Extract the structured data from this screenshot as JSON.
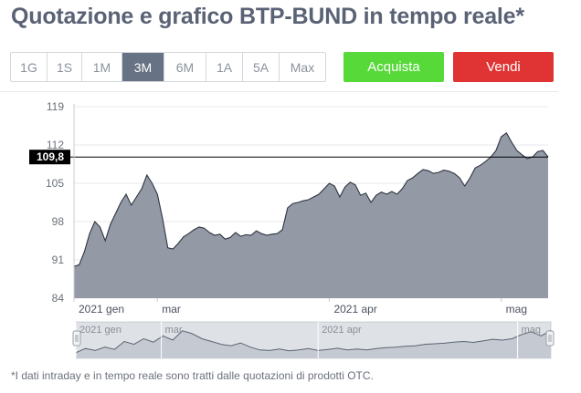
{
  "page": {
    "title": "Quotazione e grafico BTP-BUND in tempo reale*",
    "footnote": "*I dati intraday e in tempo reale sono tratti dalle quotazioni di prodotti OTC."
  },
  "toolbar": {
    "ranges": [
      {
        "label": "1G",
        "active": false
      },
      {
        "label": "1S",
        "active": false
      },
      {
        "label": "1M",
        "active": false
      },
      {
        "label": "3M",
        "active": true
      },
      {
        "label": "6M",
        "active": false
      },
      {
        "label": "1A",
        "active": false
      },
      {
        "label": "5A",
        "active": false
      },
      {
        "label": "Max",
        "active": false
      }
    ],
    "buy_label": "Acquista",
    "sell_label": "Vendi"
  },
  "colors": {
    "title": "#5a6275",
    "range_active_bg": "#677284",
    "buy": "#57d93a",
    "sell": "#e03434",
    "area_fill": "#939aa6",
    "area_stroke": "#2e3440",
    "current_line": "#000000",
    "navigator_fill": "#dde0e5",
    "navigator_stroke": "#4b5160"
  },
  "chart_data": {
    "type": "area",
    "ylim": [
      84,
      119
    ],
    "yticks": [
      84,
      91,
      98,
      105,
      112,
      119
    ],
    "x": [
      0,
      1,
      2,
      3,
      4,
      5,
      6,
      7,
      8,
      9,
      10,
      11,
      12,
      13,
      14,
      15,
      16,
      17,
      18,
      19,
      20,
      21,
      22,
      23,
      24,
      25,
      26,
      27,
      28,
      29,
      30,
      31,
      32,
      33,
      34,
      35,
      36,
      37,
      38,
      39,
      40,
      41,
      42,
      43,
      44,
      45,
      46,
      47,
      48,
      49,
      50,
      51,
      52,
      53,
      54,
      55,
      56,
      57,
      58,
      59,
      60,
      61,
      62,
      63,
      64,
      65,
      66,
      67,
      68,
      69,
      70,
      71,
      72,
      73,
      74,
      75,
      76,
      77,
      78,
      79,
      80,
      81,
      82,
      83,
      84,
      85,
      86,
      87,
      88,
      89,
      90,
      91
    ],
    "values": [
      89.8,
      90.1,
      92.5,
      95.8,
      98.0,
      97.0,
      94.5,
      97.5,
      99.5,
      101.5,
      103.0,
      101.0,
      102.5,
      104.0,
      106.5,
      105.0,
      103.0,
      98.5,
      93.2,
      93.0,
      94.0,
      95.2,
      95.8,
      96.5,
      97.0,
      96.8,
      96.0,
      95.5,
      95.7,
      94.8,
      95.1,
      96.0,
      95.3,
      95.6,
      95.5,
      96.3,
      95.8,
      95.5,
      95.7,
      95.8,
      96.5,
      100.5,
      101.3,
      101.5,
      101.8,
      102.0,
      102.5,
      103.0,
      104.0,
      105.0,
      104.5,
      102.5,
      104.3,
      105.2,
      104.7,
      102.8,
      103.2,
      101.5,
      102.8,
      103.4,
      103.0,
      103.5,
      103.0,
      104.0,
      105.5,
      106.0,
      106.8,
      107.5,
      107.3,
      106.8,
      107.0,
      107.4,
      107.2,
      106.8,
      106.0,
      104.5,
      106.0,
      107.8,
      108.3,
      109.0,
      109.8,
      111.0,
      113.5,
      114.2,
      112.5,
      111.0,
      110.2,
      109.5,
      109.8,
      110.8,
      111.0,
      109.8
    ],
    "current_value": 109.8,
    "current_label": "109,8",
    "x_tick_labels": [
      {
        "label": "2021 gen",
        "x": 0
      },
      {
        "label": "mar",
        "x": 16
      },
      {
        "label": "2021 apr",
        "x": 49
      },
      {
        "label": "mag",
        "x": 82
      }
    ],
    "navigator": {
      "values": [
        90.0,
        91.5,
        90.8,
        92.0,
        91.2,
        94.0,
        93.0,
        95.0,
        93.8,
        96.0,
        94.5,
        97.8,
        96.8,
        95.0,
        94.0,
        93.0,
        92.5,
        93.5,
        92.0,
        91.0,
        90.8,
        91.3,
        90.7,
        91.0,
        91.5,
        90.8,
        91.2,
        91.6,
        91.0,
        91.3,
        91.0,
        91.5,
        91.8,
        92.0,
        92.3,
        92.5,
        93.0,
        93.2,
        93.4,
        93.8,
        94.0,
        93.7,
        94.2,
        94.8,
        94.5,
        95.0,
        96.5,
        97.5,
        96.0,
        98.0
      ],
      "x_tick_labels": [
        {
          "label": "2021 gen",
          "x": 0
        },
        {
          "label": "mar",
          "x": 18
        },
        {
          "label": "2021 apr",
          "x": 51
        },
        {
          "label": "mag",
          "x": 93
        }
      ]
    }
  }
}
